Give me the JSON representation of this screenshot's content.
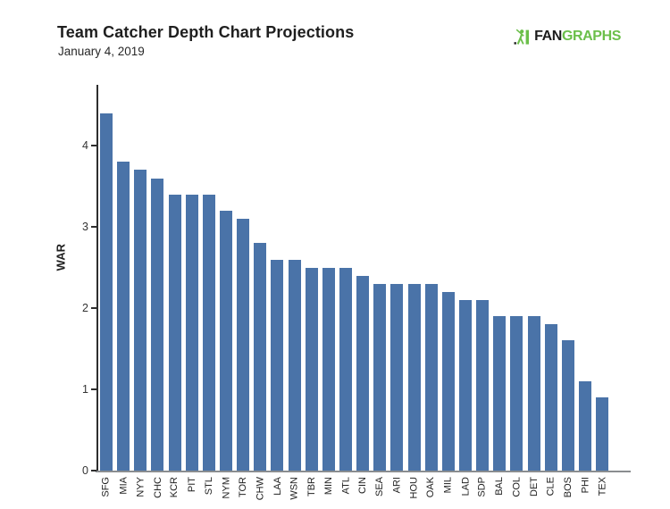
{
  "header": {
    "title": "Team Catcher Depth Chart Projections",
    "subtitle": "January 4, 2019"
  },
  "logo": {
    "fan": "FAN",
    "graphs": "GRAPHS",
    "green": "#6bbf4a",
    "dark": "#1d1d1d"
  },
  "chart_data": {
    "type": "bar",
    "title": "Team Catcher Depth Chart Projections",
    "subtitle": "January 4, 2019",
    "xlabel": "",
    "ylabel": "WAR",
    "ylim": [
      0,
      4.75
    ],
    "yticks": [
      0,
      1,
      2,
      3,
      4
    ],
    "grid": false,
    "legend": "none",
    "bar_color": "#4a73a8",
    "categories": [
      "SFG",
      "MIA",
      "NYY",
      "CHC",
      "KCR",
      "PIT",
      "STL",
      "NYM",
      "TOR",
      "CHW",
      "LAA",
      "WSN",
      "TBR",
      "MIN",
      "ATL",
      "CIN",
      "SEA",
      "ARI",
      "HOU",
      "OAK",
      "MIL",
      "LAD",
      "SDP",
      "BAL",
      "COL",
      "DET",
      "CLE",
      "BOS",
      "PHI",
      "TEX"
    ],
    "values": [
      4.4,
      3.8,
      3.7,
      3.6,
      3.4,
      3.4,
      3.4,
      3.2,
      3.1,
      2.8,
      2.6,
      2.6,
      2.5,
      2.5,
      2.5,
      2.4,
      2.3,
      2.3,
      2.3,
      2.3,
      2.2,
      2.1,
      2.1,
      1.9,
      1.9,
      1.9,
      1.8,
      1.6,
      1.1,
      0.9
    ]
  }
}
